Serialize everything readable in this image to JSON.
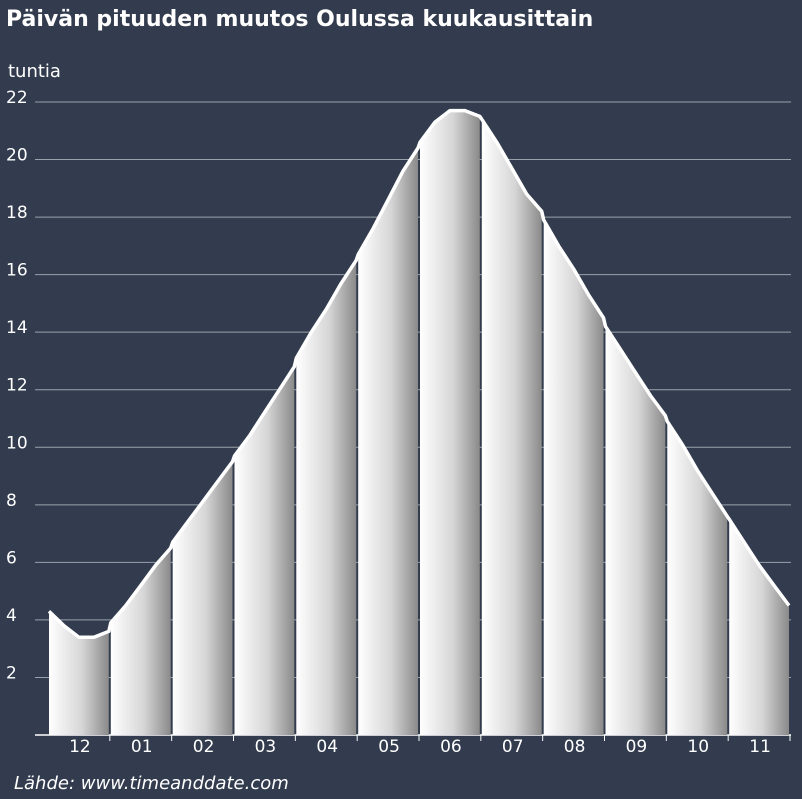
{
  "chart_data": {
    "type": "area",
    "title": "Päivän pituuden muutos Oulussa kuukausittain",
    "y_label": "tuntia",
    "source": "Lähde: www.timeanddate.com",
    "categories": [
      "12",
      "01",
      "02",
      "03",
      "04",
      "05",
      "06",
      "07",
      "08",
      "09",
      "10",
      "11"
    ],
    "values": [
      [
        4.3,
        3.8,
        3.4,
        3.4,
        3.6
      ],
      [
        3.9,
        4.5,
        5.2,
        5.9,
        6.5
      ],
      [
        6.7,
        7.4,
        8.1,
        8.8,
        9.5
      ],
      [
        9.7,
        10.4,
        11.2,
        12.0,
        12.8
      ],
      [
        13.1,
        14.0,
        14.8,
        15.7,
        16.5
      ],
      [
        16.7,
        17.6,
        18.6,
        19.6,
        20.4
      ],
      [
        20.6,
        21.3,
        21.7,
        21.7,
        21.5
      ],
      [
        21.4,
        20.6,
        19.7,
        18.8,
        18.2
      ],
      [
        17.9,
        17.0,
        16.2,
        15.3,
        14.5
      ],
      [
        14.2,
        13.4,
        12.6,
        11.8,
        11.1
      ],
      [
        10.9,
        10.1,
        9.2,
        8.4,
        7.6
      ],
      [
        7.5,
        6.7,
        5.9,
        5.2,
        4.5
      ]
    ],
    "color": "#ffffff",
    "ylim": [
      0,
      22
    ],
    "yticks": [
      2,
      4,
      6,
      8,
      10,
      12,
      14,
      16,
      18,
      20,
      22
    ],
    "grid": true
  }
}
